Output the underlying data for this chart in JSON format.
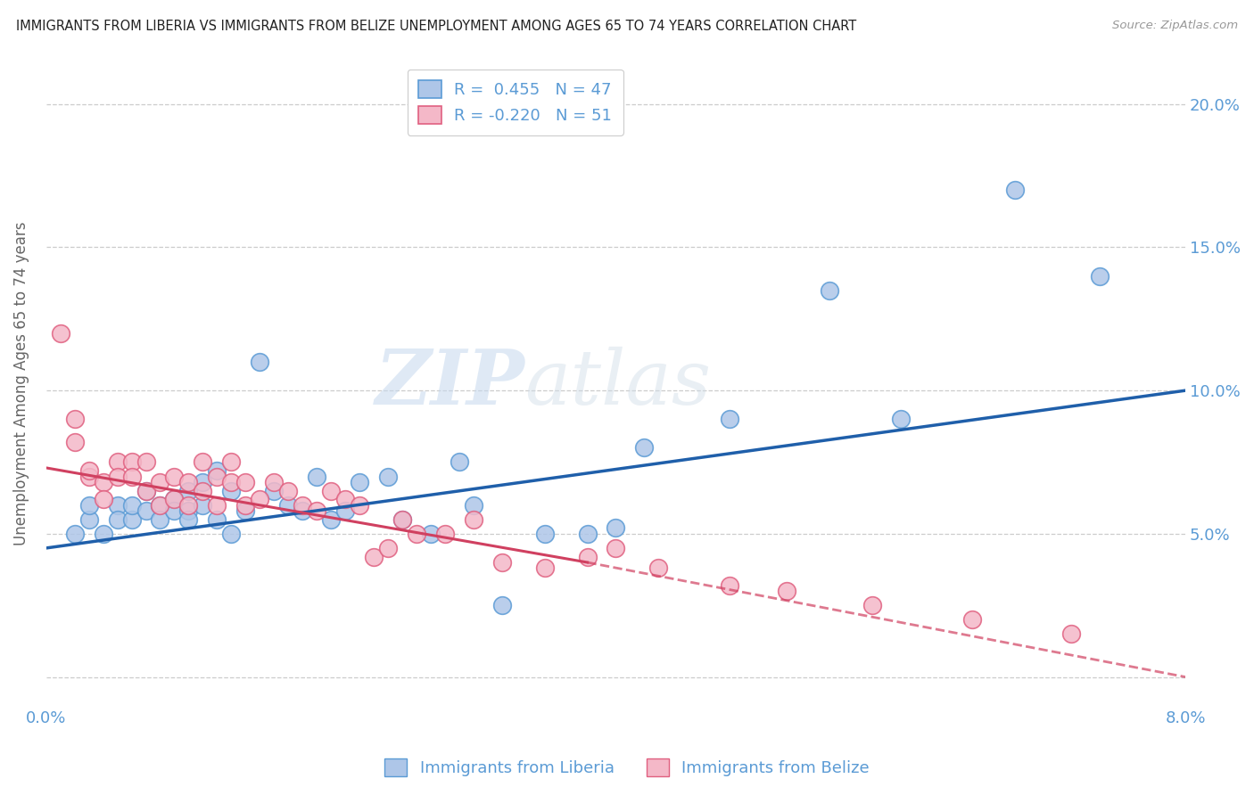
{
  "title": "IMMIGRANTS FROM LIBERIA VS IMMIGRANTS FROM BELIZE UNEMPLOYMENT AMONG AGES 65 TO 74 YEARS CORRELATION CHART",
  "source": "Source: ZipAtlas.com",
  "ylabel": "Unemployment Among Ages 65 to 74 years",
  "xlim": [
    0.0,
    0.08
  ],
  "ylim": [
    -0.01,
    0.215
  ],
  "yticks": [
    0.0,
    0.05,
    0.1,
    0.15,
    0.2
  ],
  "xticks": [
    0.0,
    0.02,
    0.04,
    0.06,
    0.08
  ],
  "xtick_labels": [
    "0.0%",
    "",
    "",
    "",
    "8.0%"
  ],
  "ytick_labels_right": [
    "",
    "5.0%",
    "10.0%",
    "15.0%",
    "20.0%"
  ],
  "legend_r1": "R =  0.455   N = 47",
  "legend_r2": "R = -0.220   N = 51",
  "liberia_color": "#aec6e8",
  "liberia_edge": "#5b9bd5",
  "belize_color": "#f4b8c8",
  "belize_edge": "#e06080",
  "trend_liberia_color": "#1f5faa",
  "trend_belize_color": "#d04060",
  "watermark_zip": "ZIP",
  "watermark_atlas": "atlas",
  "liberia_x": [
    0.002,
    0.003,
    0.003,
    0.004,
    0.005,
    0.005,
    0.006,
    0.006,
    0.007,
    0.007,
    0.008,
    0.008,
    0.009,
    0.009,
    0.01,
    0.01,
    0.01,
    0.011,
    0.011,
    0.012,
    0.012,
    0.013,
    0.013,
    0.014,
    0.015,
    0.016,
    0.017,
    0.018,
    0.019,
    0.02,
    0.021,
    0.022,
    0.024,
    0.025,
    0.027,
    0.029,
    0.03,
    0.032,
    0.035,
    0.038,
    0.04,
    0.042,
    0.048,
    0.055,
    0.06,
    0.068,
    0.074
  ],
  "liberia_y": [
    0.05,
    0.055,
    0.06,
    0.05,
    0.06,
    0.055,
    0.055,
    0.06,
    0.058,
    0.065,
    0.06,
    0.055,
    0.062,
    0.058,
    0.065,
    0.058,
    0.055,
    0.068,
    0.06,
    0.072,
    0.055,
    0.065,
    0.05,
    0.058,
    0.11,
    0.065,
    0.06,
    0.058,
    0.07,
    0.055,
    0.058,
    0.068,
    0.07,
    0.055,
    0.05,
    0.075,
    0.06,
    0.025,
    0.05,
    0.05,
    0.052,
    0.08,
    0.09,
    0.135,
    0.09,
    0.17,
    0.14
  ],
  "belize_x": [
    0.001,
    0.002,
    0.002,
    0.003,
    0.003,
    0.004,
    0.004,
    0.005,
    0.005,
    0.006,
    0.006,
    0.007,
    0.007,
    0.008,
    0.008,
    0.009,
    0.009,
    0.01,
    0.01,
    0.011,
    0.011,
    0.012,
    0.012,
    0.013,
    0.013,
    0.014,
    0.014,
    0.015,
    0.016,
    0.017,
    0.018,
    0.019,
    0.02,
    0.021,
    0.022,
    0.023,
    0.024,
    0.025,
    0.026,
    0.028,
    0.03,
    0.032,
    0.035,
    0.038,
    0.04,
    0.043,
    0.048,
    0.052,
    0.058,
    0.065,
    0.072
  ],
  "belize_y": [
    0.12,
    0.09,
    0.082,
    0.07,
    0.072,
    0.068,
    0.062,
    0.075,
    0.07,
    0.075,
    0.07,
    0.075,
    0.065,
    0.068,
    0.06,
    0.07,
    0.062,
    0.068,
    0.06,
    0.075,
    0.065,
    0.07,
    0.06,
    0.075,
    0.068,
    0.068,
    0.06,
    0.062,
    0.068,
    0.065,
    0.06,
    0.058,
    0.065,
    0.062,
    0.06,
    0.042,
    0.045,
    0.055,
    0.05,
    0.05,
    0.055,
    0.04,
    0.038,
    0.042,
    0.045,
    0.038,
    0.032,
    0.03,
    0.025,
    0.02,
    0.015
  ],
  "trend_lib_x0": 0.0,
  "trend_lib_x1": 0.08,
  "trend_lib_y0": 0.045,
  "trend_lib_y1": 0.1,
  "trend_bel_x0": 0.0,
  "trend_bel_x1": 0.038,
  "trend_bel_xdash0": 0.038,
  "trend_bel_xdash1": 0.08,
  "trend_bel_y0": 0.073,
  "trend_bel_y1": 0.04,
  "trend_bel_ydash1": 0.0
}
